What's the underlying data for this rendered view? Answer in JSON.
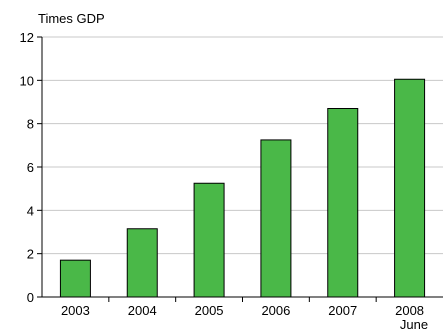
{
  "chart_data": {
    "type": "bar",
    "ylabel": "Times GDP",
    "categories": [
      "2003",
      "2004",
      "2005",
      "2006",
      "2007",
      "2008"
    ],
    "category_note": "June",
    "values": [
      1.7,
      3.15,
      5.25,
      7.25,
      8.7,
      10.05
    ],
    "ylim": [
      0,
      12
    ],
    "yticks": [
      0,
      2,
      4,
      6,
      8,
      10,
      12
    ],
    "grid": true,
    "bar_color": "#4ab848",
    "bar_edge_color": "#000000",
    "grid_color": "#c8c8c8"
  }
}
